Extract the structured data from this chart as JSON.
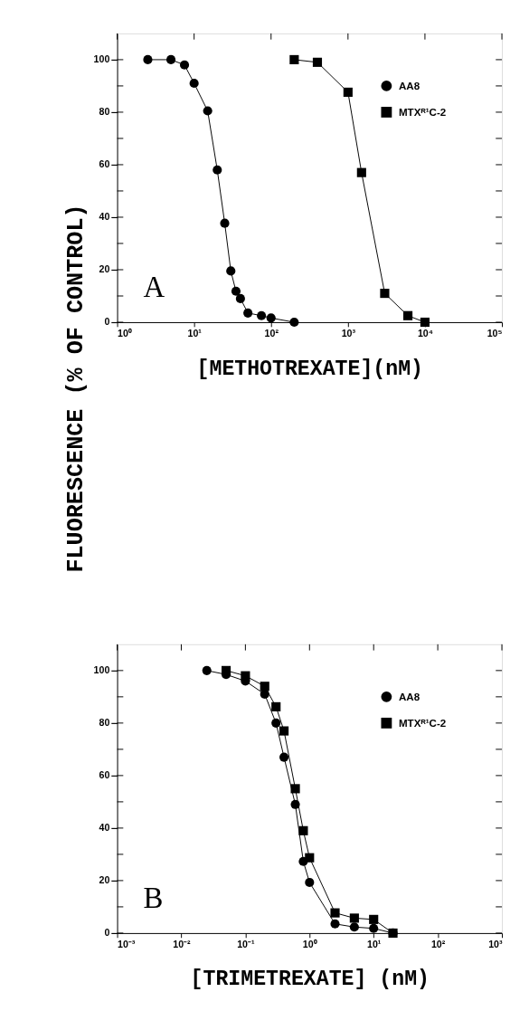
{
  "chart_data": [
    {
      "type": "line",
      "xlabel": "[METHOTREXATE](nM)",
      "ylabel": "FLUORESCENCE (% OF CONTROL)",
      "log": "x",
      "grid": false,
      "legend": "top right",
      "annotations": [
        "A"
      ],
      "xlim": [
        1,
        100000
      ],
      "xticks": [
        {
          "value": 1,
          "label": "10⁰"
        },
        {
          "value": 10,
          "label": "10¹"
        },
        {
          "value": 100,
          "label": "10²"
        },
        {
          "value": 1000,
          "label": "10³"
        },
        {
          "value": 10000,
          "label": "10⁴"
        },
        {
          "value": 100000,
          "label": "10⁵"
        }
      ],
      "ylim": [
        0,
        110
      ],
      "yticks": [
        0,
        {
          "value": 10,
          "label": null
        },
        20,
        {
          "value": 30,
          "label": null
        },
        40,
        {
          "value": 50,
          "label": null
        },
        60,
        {
          "value": 70,
          "label": null
        },
        80,
        {
          "value": 90,
          "label": null
        },
        100
      ],
      "series": [
        {
          "name": "AA8",
          "color": "#000000",
          "marker": "circle",
          "x": [
            2.5,
            5,
            7.5,
            10,
            15,
            20,
            25,
            30,
            35,
            40,
            50,
            75,
            100,
            200
          ],
          "values": [
            100,
            100,
            98,
            91,
            80.5,
            58,
            37.7,
            19.5,
            11.8,
            9,
            3.5,
            2.5,
            1.6,
            0
          ]
        },
        {
          "name": "MTXᴿ¹C-2",
          "color": "#000000",
          "marker": "square",
          "x": [
            200,
            400,
            1000,
            1500,
            3000,
            6000,
            10000
          ],
          "values": [
            100,
            99,
            87.6,
            57,
            11,
            2.5,
            0
          ]
        }
      ]
    },
    {
      "type": "line",
      "xlabel": "[TRIMETREXATE] (nM)",
      "log": "x",
      "grid": false,
      "legend": "top right",
      "annotations": [
        "B"
      ],
      "xlim": [
        0.001,
        1000
      ],
      "xticks": [
        {
          "value": 0.001,
          "label": "10⁻³"
        },
        {
          "value": 0.01,
          "label": "10⁻²"
        },
        {
          "value": 0.1,
          "label": "10⁻¹"
        },
        {
          "value": 1,
          "label": "10⁰"
        },
        {
          "value": 10,
          "label": "10¹"
        },
        {
          "value": 100,
          "label": "10²"
        },
        {
          "value": 1000,
          "label": "10³"
        }
      ],
      "ylim": [
        0,
        110
      ],
      "yticks": [
        0,
        {
          "value": 10,
          "label": null
        },
        20,
        {
          "value": 30,
          "label": null
        },
        40,
        {
          "value": 50,
          "label": null
        },
        60,
        {
          "value": 70,
          "label": null
        },
        80,
        {
          "value": 90,
          "label": null
        },
        100
      ],
      "series": [
        {
          "name": "AA8",
          "color": "#000000",
          "marker": "circle",
          "x": [
            0.025,
            0.05,
            0.1,
            0.2,
            0.3,
            0.4,
            0.6,
            0.8,
            1,
            2.5,
            5,
            10,
            20
          ],
          "values": [
            100,
            98.5,
            96,
            91,
            80,
            67,
            49,
            27.3,
            19.3,
            3.5,
            2.3,
            1.8,
            0
          ]
        },
        {
          "name": "MTXᴿ¹C-2",
          "color": "#000000",
          "marker": "square",
          "x": [
            0.05,
            0.1,
            0.2,
            0.3,
            0.4,
            0.6,
            0.8,
            1,
            2.5,
            5,
            10,
            20
          ],
          "values": [
            100,
            98,
            94,
            86.2,
            77,
            55,
            39,
            28.7,
            7.7,
            5.7,
            5.2,
            0
          ]
        }
      ]
    }
  ]
}
